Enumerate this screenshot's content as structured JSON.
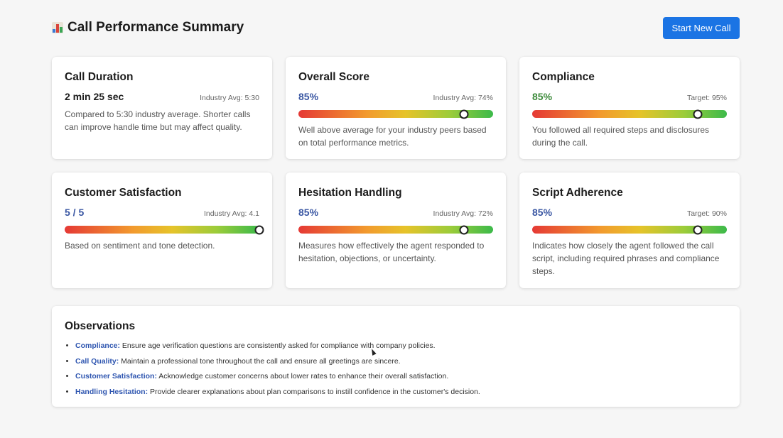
{
  "header": {
    "title": "Call Performance Summary",
    "button_label": "Start New Call"
  },
  "colors": {
    "accent": "#1b74e4",
    "score_blue": "#3a57a3",
    "score_green": "#3c8a3a",
    "observation_label": "#2f56b0"
  },
  "cards": {
    "duration": {
      "title": "Call Duration",
      "value": "2 min 25 sec",
      "reference": "Industry Avg: 5:30",
      "description": "Compared to 5:30 industry average. Shorter calls can improve handle time but may affect quality."
    },
    "overall": {
      "title": "Overall Score",
      "value": "85%",
      "reference": "Industry Avg: 74%",
      "bar_fraction": 0.85,
      "description": "Well above average for your industry peers based on total performance metrics."
    },
    "compliance": {
      "title": "Compliance",
      "value": "85%",
      "reference": "Target: 95%",
      "bar_fraction": 0.85,
      "description": "You followed all required steps and disclosures during the call."
    },
    "satisfaction": {
      "title": "Customer Satisfaction",
      "value": "5 / 5",
      "reference": "Industry Avg: 4.1",
      "bar_fraction": 1.0,
      "description": "Based on sentiment and tone detection."
    },
    "hesitation": {
      "title": "Hesitation Handling",
      "value": "85%",
      "reference": "Industry Avg: 72%",
      "bar_fraction": 0.85,
      "description": "Measures how effectively the agent responded to hesitation, objections, or uncertainty."
    },
    "script": {
      "title": "Script Adherence",
      "value": "85%",
      "reference": "Target: 90%",
      "bar_fraction": 0.85,
      "description": "Indicates how closely the agent followed the call script, including required phrases and compliance steps."
    }
  },
  "observations": {
    "title": "Observations",
    "items": [
      {
        "label": "Compliance:",
        "text": " Ensure age verification questions are consistently asked for compliance with company policies."
      },
      {
        "label": "Call Quality:",
        "text": " Maintain a professional tone throughout the call and ensure all greetings are sincere."
      },
      {
        "label": "Customer Satisfaction:",
        "text": " Acknowledge customer concerns about lower rates to enhance their overall satisfaction."
      },
      {
        "label": "Handling Hesitation:",
        "text": " Provide clearer explanations about plan comparisons to instill confidence in the customer's decision."
      }
    ]
  }
}
